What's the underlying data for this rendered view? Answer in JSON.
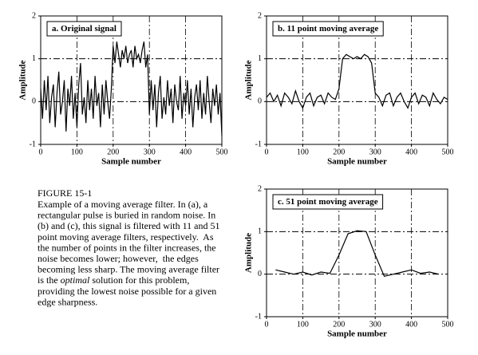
{
  "chart_data": [
    {
      "type": "line",
      "label": "a.  Original signal",
      "xlabel": "Sample number",
      "ylabel": "Amplitude",
      "color": "#000000",
      "xlim": [
        0,
        500
      ],
      "xticks": [
        0,
        100,
        200,
        300,
        400,
        500
      ],
      "ylim": [
        -1,
        2
      ],
      "yticks": [
        -1,
        0,
        1,
        2
      ],
      "grid": true,
      "x": [
        0,
        5,
        10,
        15,
        20,
        25,
        30,
        35,
        40,
        45,
        50,
        55,
        60,
        65,
        70,
        75,
        80,
        85,
        90,
        95,
        100,
        105,
        110,
        115,
        120,
        125,
        130,
        135,
        140,
        145,
        150,
        155,
        160,
        165,
        170,
        175,
        180,
        185,
        190,
        195,
        200,
        205,
        210,
        215,
        220,
        225,
        230,
        235,
        240,
        245,
        250,
        255,
        260,
        265,
        270,
        275,
        280,
        285,
        290,
        295,
        300,
        305,
        310,
        315,
        320,
        325,
        330,
        335,
        340,
        345,
        350,
        355,
        360,
        365,
        370,
        375,
        380,
        385,
        390,
        395,
        400,
        405,
        410,
        415,
        420,
        425,
        430,
        435,
        440,
        445,
        450,
        455,
        460,
        465,
        470,
        475,
        480,
        485,
        490,
        495,
        500
      ],
      "values": [
        0.3,
        -0.4,
        0.5,
        -0.2,
        0.6,
        -0.5,
        0.1,
        0.4,
        -0.6,
        0.2,
        0.7,
        -0.3,
        0.0,
        0.5,
        -0.7,
        0.3,
        -0.1,
        0.6,
        -0.4,
        0.2,
        -0.6,
        0.4,
        0.9,
        -0.3,
        0.1,
        -0.5,
        0.5,
        -0.2,
        0.3,
        -0.4,
        0.6,
        -0.1,
        0.2,
        -0.6,
        0.4,
        -0.3,
        0.5,
        0.0,
        -0.4,
        0.3,
        1.3,
        0.9,
        1.4,
        1.1,
        0.8,
        1.2,
        1.0,
        1.3,
        0.9,
        1.1,
        1.2,
        0.8,
        1.3,
        1.0,
        1.1,
        0.9,
        1.2,
        1.4,
        0.8,
        1.1,
        -0.3,
        0.5,
        -0.2,
        0.4,
        -0.6,
        0.2,
        0.6,
        -0.4,
        0.1,
        -0.3,
        0.5,
        -0.1,
        0.3,
        -0.5,
        0.4,
        0.0,
        -0.2,
        0.6,
        -0.4,
        0.2,
        -0.1,
        0.5,
        -0.3,
        0.3,
        -0.6,
        0.1,
        0.4,
        -0.2,
        0.5,
        -0.4,
        0.2,
        -0.3,
        0.6,
        0.0,
        -0.5,
        0.3,
        -0.1,
        0.4,
        -0.3,
        0.2,
        -0.8
      ]
    },
    {
      "type": "line",
      "label": "b.  11 point moving average",
      "xlabel": "Sample number",
      "ylabel": "Amplitude",
      "color": "#000000",
      "xlim": [
        0,
        500
      ],
      "xticks": [
        0,
        100,
        200,
        300,
        400,
        500
      ],
      "ylim": [
        -1,
        2
      ],
      "yticks": [
        -1,
        0,
        1,
        2
      ],
      "grid": true,
      "x": [
        0,
        10,
        20,
        30,
        40,
        50,
        60,
        70,
        80,
        90,
        100,
        110,
        120,
        130,
        140,
        150,
        160,
        170,
        180,
        190,
        200,
        210,
        220,
        230,
        240,
        250,
        260,
        270,
        280,
        290,
        300,
        310,
        320,
        330,
        340,
        350,
        360,
        370,
        380,
        390,
        400,
        410,
        420,
        430,
        440,
        450,
        460,
        470,
        480,
        490,
        500
      ],
      "values": [
        0.1,
        0.2,
        0.0,
        0.15,
        -0.1,
        0.2,
        0.1,
        -0.05,
        0.25,
        0.0,
        -0.15,
        0.1,
        0.2,
        -0.1,
        0.1,
        0.15,
        -0.05,
        0.2,
        0.1,
        0.05,
        0.3,
        1.0,
        1.1,
        1.05,
        1.0,
        1.05,
        1.0,
        1.1,
        1.05,
        0.9,
        0.2,
        0.1,
        -0.1,
        0.15,
        0.2,
        -0.1,
        0.1,
        0.2,
        0.0,
        -0.15,
        0.1,
        0.2,
        -0.05,
        0.15,
        0.1,
        -0.1,
        0.2,
        0.05,
        -0.05,
        0.1,
        0.05
      ]
    },
    {
      "type": "line",
      "label": "c.  51 point moving average",
      "xlabel": "Sample number",
      "ylabel": "Amplitude",
      "color": "#000000",
      "xlim": [
        0,
        500
      ],
      "xticks": [
        0,
        100,
        200,
        300,
        400,
        500
      ],
      "ylim": [
        -1,
        2
      ],
      "yticks": [
        -1,
        0,
        1,
        2
      ],
      "grid": true,
      "x": [
        25,
        50,
        75,
        100,
        125,
        150,
        175,
        200,
        225,
        250,
        275,
        300,
        325,
        350,
        375,
        400,
        425,
        450,
        475
      ],
      "values": [
        0.1,
        0.05,
        0.0,
        0.05,
        -0.02,
        0.05,
        0.02,
        0.45,
        0.95,
        1.02,
        1.0,
        0.45,
        -0.05,
        0.0,
        0.05,
        0.1,
        0.02,
        0.05,
        0.0
      ]
    }
  ],
  "caption": {
    "title": "FIGURE 15-1",
    "lines": [
      [
        {
          "text": "Example of a moving average filter. In (a), a"
        }
      ],
      [
        {
          "text": "rectangular pulse is buried in random noise. In"
        }
      ],
      [
        {
          "text": "(b) and (c), this signal is filtered with 11 and 51"
        }
      ],
      [
        {
          "text": "point moving average filters, respectively.  As"
        }
      ],
      [
        {
          "text": "the number of points in the filter increases, the"
        }
      ],
      [
        {
          "text": "noise becomes lower; however,  the edges"
        }
      ],
      [
        {
          "text": "becoming less sharp. The moving average filter"
        }
      ],
      [
        {
          "text": "is the "
        },
        {
          "text": "optimal",
          "italic": true
        },
        {
          "text": " solution for this problem,"
        }
      ],
      [
        {
          "text": "providing the lowest noise possible for a given"
        }
      ],
      [
        {
          "text": "edge sharpness."
        }
      ]
    ]
  }
}
